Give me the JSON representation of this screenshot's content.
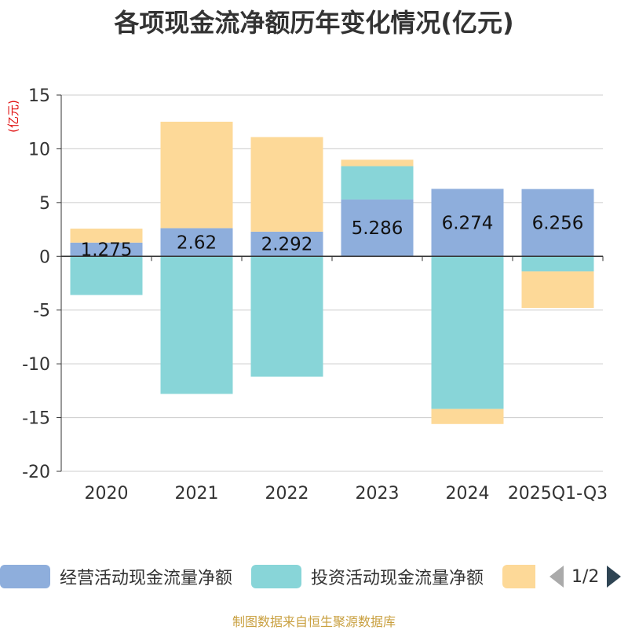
{
  "chart_data": {
    "type": "bar",
    "stacked": true,
    "title": "各项现金流净额历年变化情况(亿元)",
    "ylabel": "(亿元)",
    "ylim": [
      -20,
      15
    ],
    "yticks": [
      15,
      10,
      5,
      0,
      -5,
      -10,
      -15,
      -20
    ],
    "categories": [
      "2020",
      "2021",
      "2022",
      "2023",
      "2024",
      "2025Q1-Q3"
    ],
    "series": [
      {
        "name": "经营活动现金流量净额",
        "color": "#8eaedc",
        "values": [
          1.275,
          2.62,
          2.292,
          5.286,
          6.274,
          6.256
        ],
        "labels": [
          "1.275",
          "2.62",
          "2.292",
          "5.286",
          "6.274",
          "6.256"
        ]
      },
      {
        "name": "投资活动现金流量净额",
        "color": "#88d5d8",
        "values": [
          -3.6,
          -12.8,
          -11.2,
          3.1,
          -14.2,
          -1.4
        ]
      },
      {
        "name": "",
        "color": "#fdd998",
        "values": [
          1.3,
          9.9,
          8.8,
          0.6,
          -1.4,
          -3.4
        ]
      }
    ],
    "legend": {
      "page": "1/2"
    }
  },
  "footer": {
    "source": "制图数据来自恒生聚源数据库"
  }
}
